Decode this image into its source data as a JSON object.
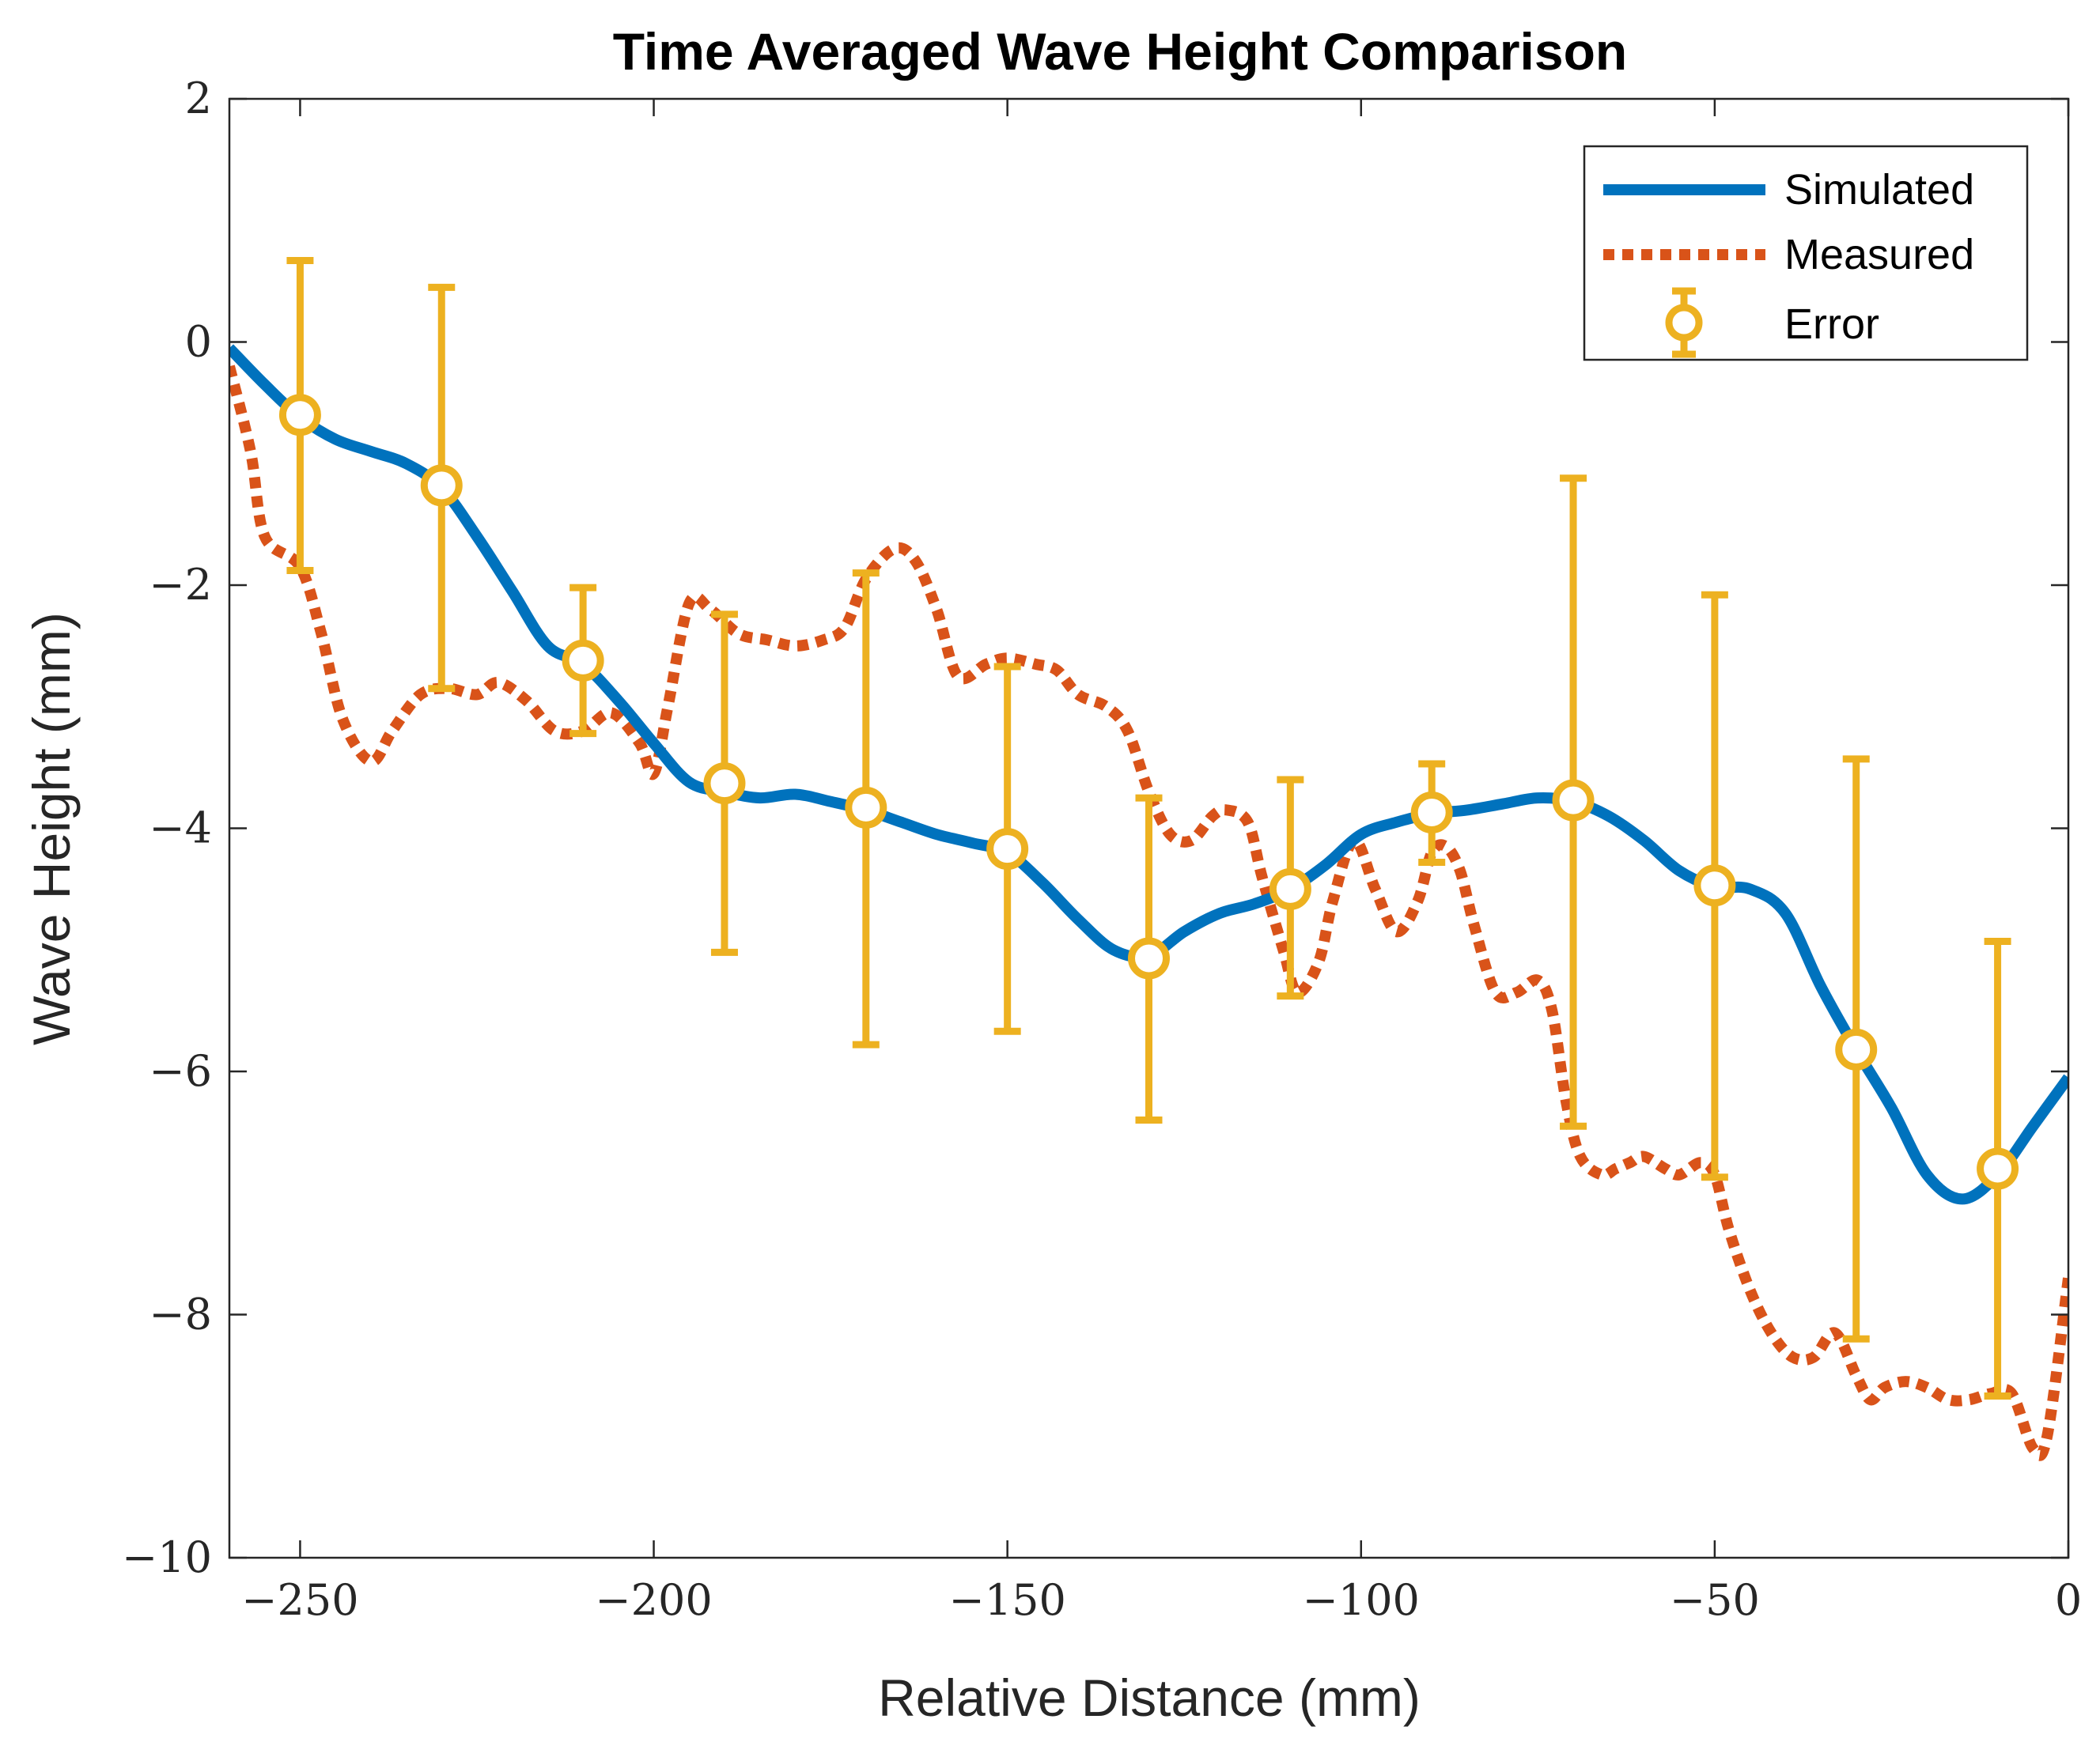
{
  "chart_data": {
    "type": "line",
    "title": "Time Averaged Wave Height Comparison",
    "xlabel": "Relative Distance (mm)",
    "ylabel": "Wave Height (mm)",
    "xlim": [
      -260,
      0
    ],
    "ylim": [
      -10,
      2
    ],
    "xticks": [
      -250,
      -200,
      -150,
      -100,
      -50,
      0
    ],
    "xtick_labels": [
      "−250",
      "−200",
      "−150",
      "−100",
      "−50",
      "0"
    ],
    "yticks": [
      -10,
      -8,
      -6,
      -4,
      -2,
      0,
      2
    ],
    "ytick_labels": [
      "−10",
      "−8",
      "−6",
      "−4",
      "−2",
      "0",
      "2"
    ],
    "grid": false,
    "legend_position": "top-right",
    "colors": {
      "simulated": "#0072bd",
      "measured": "#d95319",
      "error": "#edb120",
      "axis": "#262626"
    },
    "series": [
      {
        "name": "Simulated",
        "style": "solid",
        "x": [
          -260,
          -255,
          -250,
          -245,
          -240,
          -235,
          -230,
          -225,
          -220,
          -215,
          -210,
          -205,
          -200,
          -195,
          -190,
          -185,
          -180,
          -175,
          -170,
          -165,
          -160,
          -155,
          -150,
          -145,
          -140,
          -135,
          -130,
          -125,
          -120,
          -115,
          -110,
          -105,
          -100,
          -95,
          -90,
          -85,
          -80,
          -75,
          -70,
          -65,
          -60,
          -55,
          -50,
          -45,
          -40,
          -35,
          -30,
          -25,
          -20,
          -15,
          -10,
          -5,
          0
        ],
        "y": [
          -0.05,
          -0.35,
          -0.62,
          -0.8,
          -0.9,
          -1.0,
          -1.2,
          -1.6,
          -2.05,
          -2.5,
          -2.65,
          -2.95,
          -3.3,
          -3.62,
          -3.7,
          -3.75,
          -3.72,
          -3.78,
          -3.85,
          -3.95,
          -4.05,
          -4.12,
          -4.2,
          -4.45,
          -4.75,
          -5.0,
          -5.05,
          -4.85,
          -4.7,
          -4.62,
          -4.5,
          -4.3,
          -4.05,
          -3.95,
          -3.88,
          -3.85,
          -3.8,
          -3.75,
          -3.78,
          -3.9,
          -4.1,
          -4.35,
          -4.48,
          -4.5,
          -4.7,
          -5.3,
          -5.82,
          -6.3,
          -6.85,
          -7.05,
          -6.85,
          -6.45,
          -6.05
        ]
      },
      {
        "name": "Measured",
        "style": "dotted",
        "x": [
          -260,
          -257,
          -255,
          -250,
          -247,
          -244,
          -240,
          -237,
          -233,
          -229,
          -225,
          -222,
          -218,
          -214,
          -210,
          -206,
          -202,
          -200,
          -198,
          -195,
          -192,
          -188,
          -184,
          -180,
          -176,
          -173,
          -170,
          -166,
          -163,
          -160,
          -157,
          -153,
          -150,
          -146,
          -143,
          -140,
          -136,
          -133,
          -130,
          -127,
          -124,
          -121,
          -119,
          -116,
          -114,
          -111,
          -109,
          -106,
          -104,
          -101,
          -98,
          -95,
          -92,
          -90,
          -88,
          -86,
          -84,
          -81,
          -78,
          -75,
          -73,
          -71,
          -69,
          -66,
          -64,
          -62,
          -60,
          -57,
          -55,
          -52,
          -50,
          -48,
          -45,
          -42,
          -39,
          -36,
          -33,
          -30,
          -28,
          -26,
          -23,
          -20,
          -17,
          -14,
          -11,
          -8,
          -5,
          -3,
          0
        ],
        "y": [
          -0.2,
          -0.9,
          -1.6,
          -1.85,
          -2.4,
          -3.1,
          -3.45,
          -3.2,
          -2.9,
          -2.85,
          -2.9,
          -2.8,
          -2.95,
          -3.2,
          -3.2,
          -3.05,
          -3.3,
          -3.55,
          -3.0,
          -2.15,
          -2.2,
          -2.4,
          -2.45,
          -2.5,
          -2.45,
          -2.35,
          -1.95,
          -1.7,
          -1.8,
          -2.2,
          -2.75,
          -2.65,
          -2.6,
          -2.65,
          -2.7,
          -2.9,
          -3.0,
          -3.2,
          -3.7,
          -4.05,
          -4.1,
          -3.9,
          -3.85,
          -3.95,
          -4.4,
          -5.0,
          -5.35,
          -5.1,
          -4.6,
          -4.1,
          -4.5,
          -4.85,
          -4.6,
          -4.2,
          -4.15,
          -4.35,
          -4.8,
          -5.35,
          -5.35,
          -5.25,
          -5.5,
          -6.25,
          -6.7,
          -6.85,
          -6.8,
          -6.75,
          -6.7,
          -6.8,
          -6.85,
          -6.75,
          -6.85,
          -7.3,
          -7.8,
          -8.15,
          -8.35,
          -8.35,
          -8.15,
          -8.5,
          -8.7,
          -8.6,
          -8.55,
          -8.6,
          -8.7,
          -8.7,
          -8.65,
          -8.65,
          -9.1,
          -9.0,
          -7.7
        ]
      },
      {
        "name": "Error",
        "style": "errorbar",
        "x": [
          -250,
          -230,
          -210,
          -190,
          -170,
          -150,
          -130,
          -110,
          -90,
          -70,
          -50,
          -30,
          -10
        ],
        "y": [
          -0.6,
          -1.18,
          -2.62,
          -3.63,
          -3.83,
          -4.17,
          -5.07,
          -4.5,
          -3.87,
          -3.77,
          -4.47,
          -5.82,
          -6.8
        ],
        "lower": [
          -1.88,
          -2.85,
          -3.22,
          -5.02,
          -5.78,
          -5.67,
          -6.4,
          -5.38,
          -4.28,
          -6.45,
          -6.87,
          -8.2,
          -8.67
        ],
        "upper": [
          0.67,
          0.45,
          -2.02,
          -2.24,
          -1.9,
          -2.67,
          -3.75,
          -3.6,
          -3.47,
          -1.12,
          -2.08,
          -3.43,
          -4.93
        ]
      }
    ]
  }
}
